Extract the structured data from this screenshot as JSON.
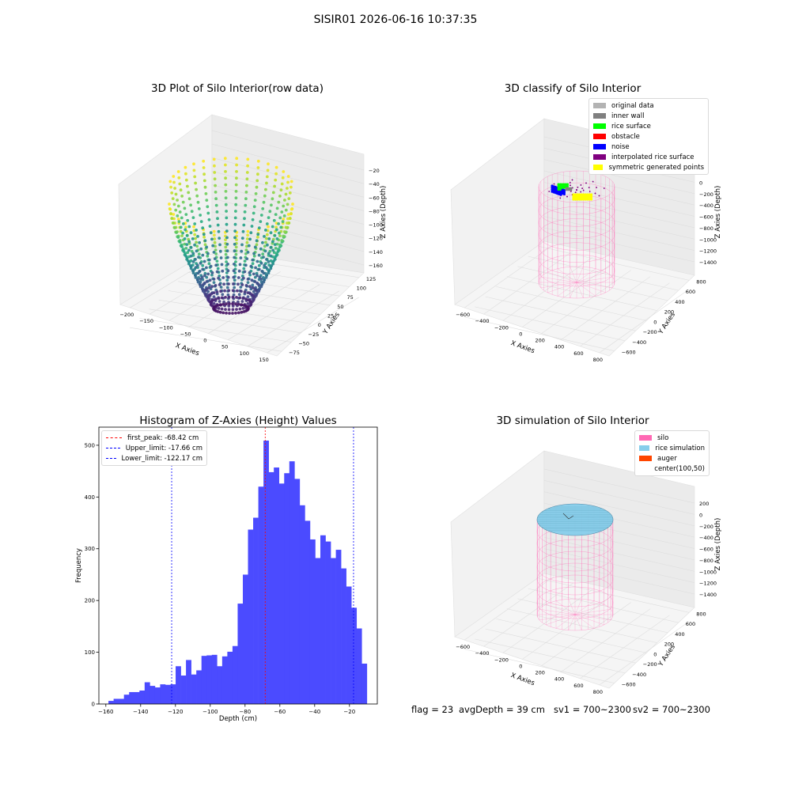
{
  "figure": {
    "suptitle": "SISIR01 2026-06-16 10:37:35",
    "footer": {
      "flag": "flag = 23",
      "avg_depth": "avgDepth = 39 cm",
      "sv1": "sv1 = 700~2300",
      "sv2": "sv2 = 700~2300"
    }
  },
  "colors": {
    "hist_bar": "#4b4bff",
    "peak_line": "#ff0000",
    "limit_line": "#0000ff",
    "silo_wire": "#ff69b4",
    "rice_sim": "#87ceeb",
    "auger": "#ff4500"
  },
  "chart_data": [
    {
      "id": "raw3d",
      "type": "scatter",
      "subtype": "3d",
      "title": "3D Plot of Silo Interior(row data)",
      "xlabel": "X Axies",
      "ylabel": "Y Axies",
      "zlabel": "Z Axies (Depth)",
      "x_ticks": [
        "−200",
        "−150",
        "−100",
        "−50",
        "0",
        "50",
        "100",
        "150"
      ],
      "y_ticks": [
        "−75",
        "−50",
        "−25",
        "0",
        "25",
        "50",
        "75",
        "100",
        "125"
      ],
      "z_ticks": [
        "−20",
        "−40",
        "−60",
        "−80",
        "−100",
        "−120",
        "−140",
        "−160"
      ],
      "xlim": [
        -200,
        175
      ],
      "ylim": [
        -75,
        135
      ],
      "zlim": [
        -170,
        -10
      ],
      "colormap": "viridis"
    },
    {
      "id": "classify3d",
      "type": "scatter",
      "subtype": "3d",
      "title": "3D classify of Silo Interior",
      "xlabel": "X Axies",
      "ylabel": "Y Axies",
      "zlabel": "Z Axies (Depth)",
      "x_ticks": [
        "−600",
        "−400",
        "−200",
        "0",
        "200",
        "400",
        "600",
        "800"
      ],
      "y_ticks": [
        "−600",
        "−400",
        "−200",
        "0",
        "200",
        "400",
        "600",
        "800"
      ],
      "z_ticks": [
        "200",
        "0",
        "−200",
        "−400",
        "−600",
        "−800",
        "−1000",
        "−1200",
        "−1400"
      ],
      "legend_position": "top-right",
      "legend": [
        {
          "label": "original data",
          "color": "#b3b3b3"
        },
        {
          "label": "inner wall",
          "color": "#808080"
        },
        {
          "label": "rice surface",
          "color": "#00ff00"
        },
        {
          "label": "obstacle",
          "color": "#ff0000"
        },
        {
          "label": "noise",
          "color": "#0000ff"
        },
        {
          "label": "interpolated rice surface",
          "color": "#800080"
        },
        {
          "label": "symmetric generated points",
          "color": "#ffff00"
        }
      ]
    },
    {
      "id": "histogram",
      "type": "bar",
      "subtype": "histogram",
      "title": "Histogram of Z-Axies (Height) Values",
      "xlabel": "Depth (cm)",
      "ylabel": "Frequency",
      "xlim": [
        -164,
        -4
      ],
      "ylim": [
        0,
        535
      ],
      "x_ticks": [
        -160,
        -140,
        -120,
        -100,
        -80,
        -60,
        -40,
        -20
      ],
      "x_tick_labels": [
        "−160",
        "−140",
        "−120",
        "−100",
        "−80",
        "−60",
        "−40",
        "−20"
      ],
      "y_ticks": [
        0,
        100,
        200,
        300,
        400,
        500
      ],
      "y_tick_labels": [
        "0",
        "100",
        "200",
        "300",
        "400",
        "500"
      ],
      "bins_start": -158.5,
      "bin_width": 2.97,
      "values": [
        6,
        10,
        10,
        18,
        23,
        23,
        26,
        42,
        35,
        32,
        38,
        37,
        38,
        73,
        55,
        85,
        57,
        65,
        93,
        94,
        95,
        73,
        92,
        101,
        112,
        194,
        250,
        337,
        360,
        420,
        509,
        448,
        457,
        426,
        446,
        469,
        435,
        384,
        354,
        318,
        282,
        326,
        314,
        282,
        298,
        262,
        227,
        186,
        146,
        78
      ],
      "lines": [
        {
          "name": "first_peak",
          "legend": "first_peak: -68.42 cm",
          "x": -68.42,
          "color": "#ff0000"
        },
        {
          "name": "upper_limit",
          "legend": "Upper_limit: -17.66 cm",
          "x": -17.66,
          "color": "#0000ff"
        },
        {
          "name": "lower_limit",
          "legend": "Lower_limit: -122.17 cm",
          "x": -122.17,
          "color": "#0000ff"
        }
      ],
      "legend_position": "top-left"
    },
    {
      "id": "simulation3d",
      "type": "scatter",
      "subtype": "3d",
      "title": "3D simulation of Silo Interior",
      "xlabel": "X Axies",
      "ylabel": "Y Axies",
      "zlabel": "Z Axies (Depth)",
      "x_ticks": [
        "−600",
        "−400",
        "−200",
        "0",
        "200",
        "400",
        "600",
        "800"
      ],
      "y_ticks": [
        "−600",
        "−400",
        "−200",
        "0",
        "200",
        "400",
        "600",
        "800"
      ],
      "z_ticks": [
        "200",
        "0",
        "−200",
        "−400",
        "−600",
        "−800",
        "−1000",
        "−1200",
        "−1400"
      ],
      "legend_position": "top-right",
      "legend": [
        {
          "label": "silo",
          "color": "#ff69b4"
        },
        {
          "label": "rice simulation",
          "color": "#87ceeb"
        },
        {
          "label": "auger",
          "color": "#ff4500"
        },
        {
          "label": "center(100,50)",
          "color": "#ffffff"
        }
      ]
    }
  ]
}
